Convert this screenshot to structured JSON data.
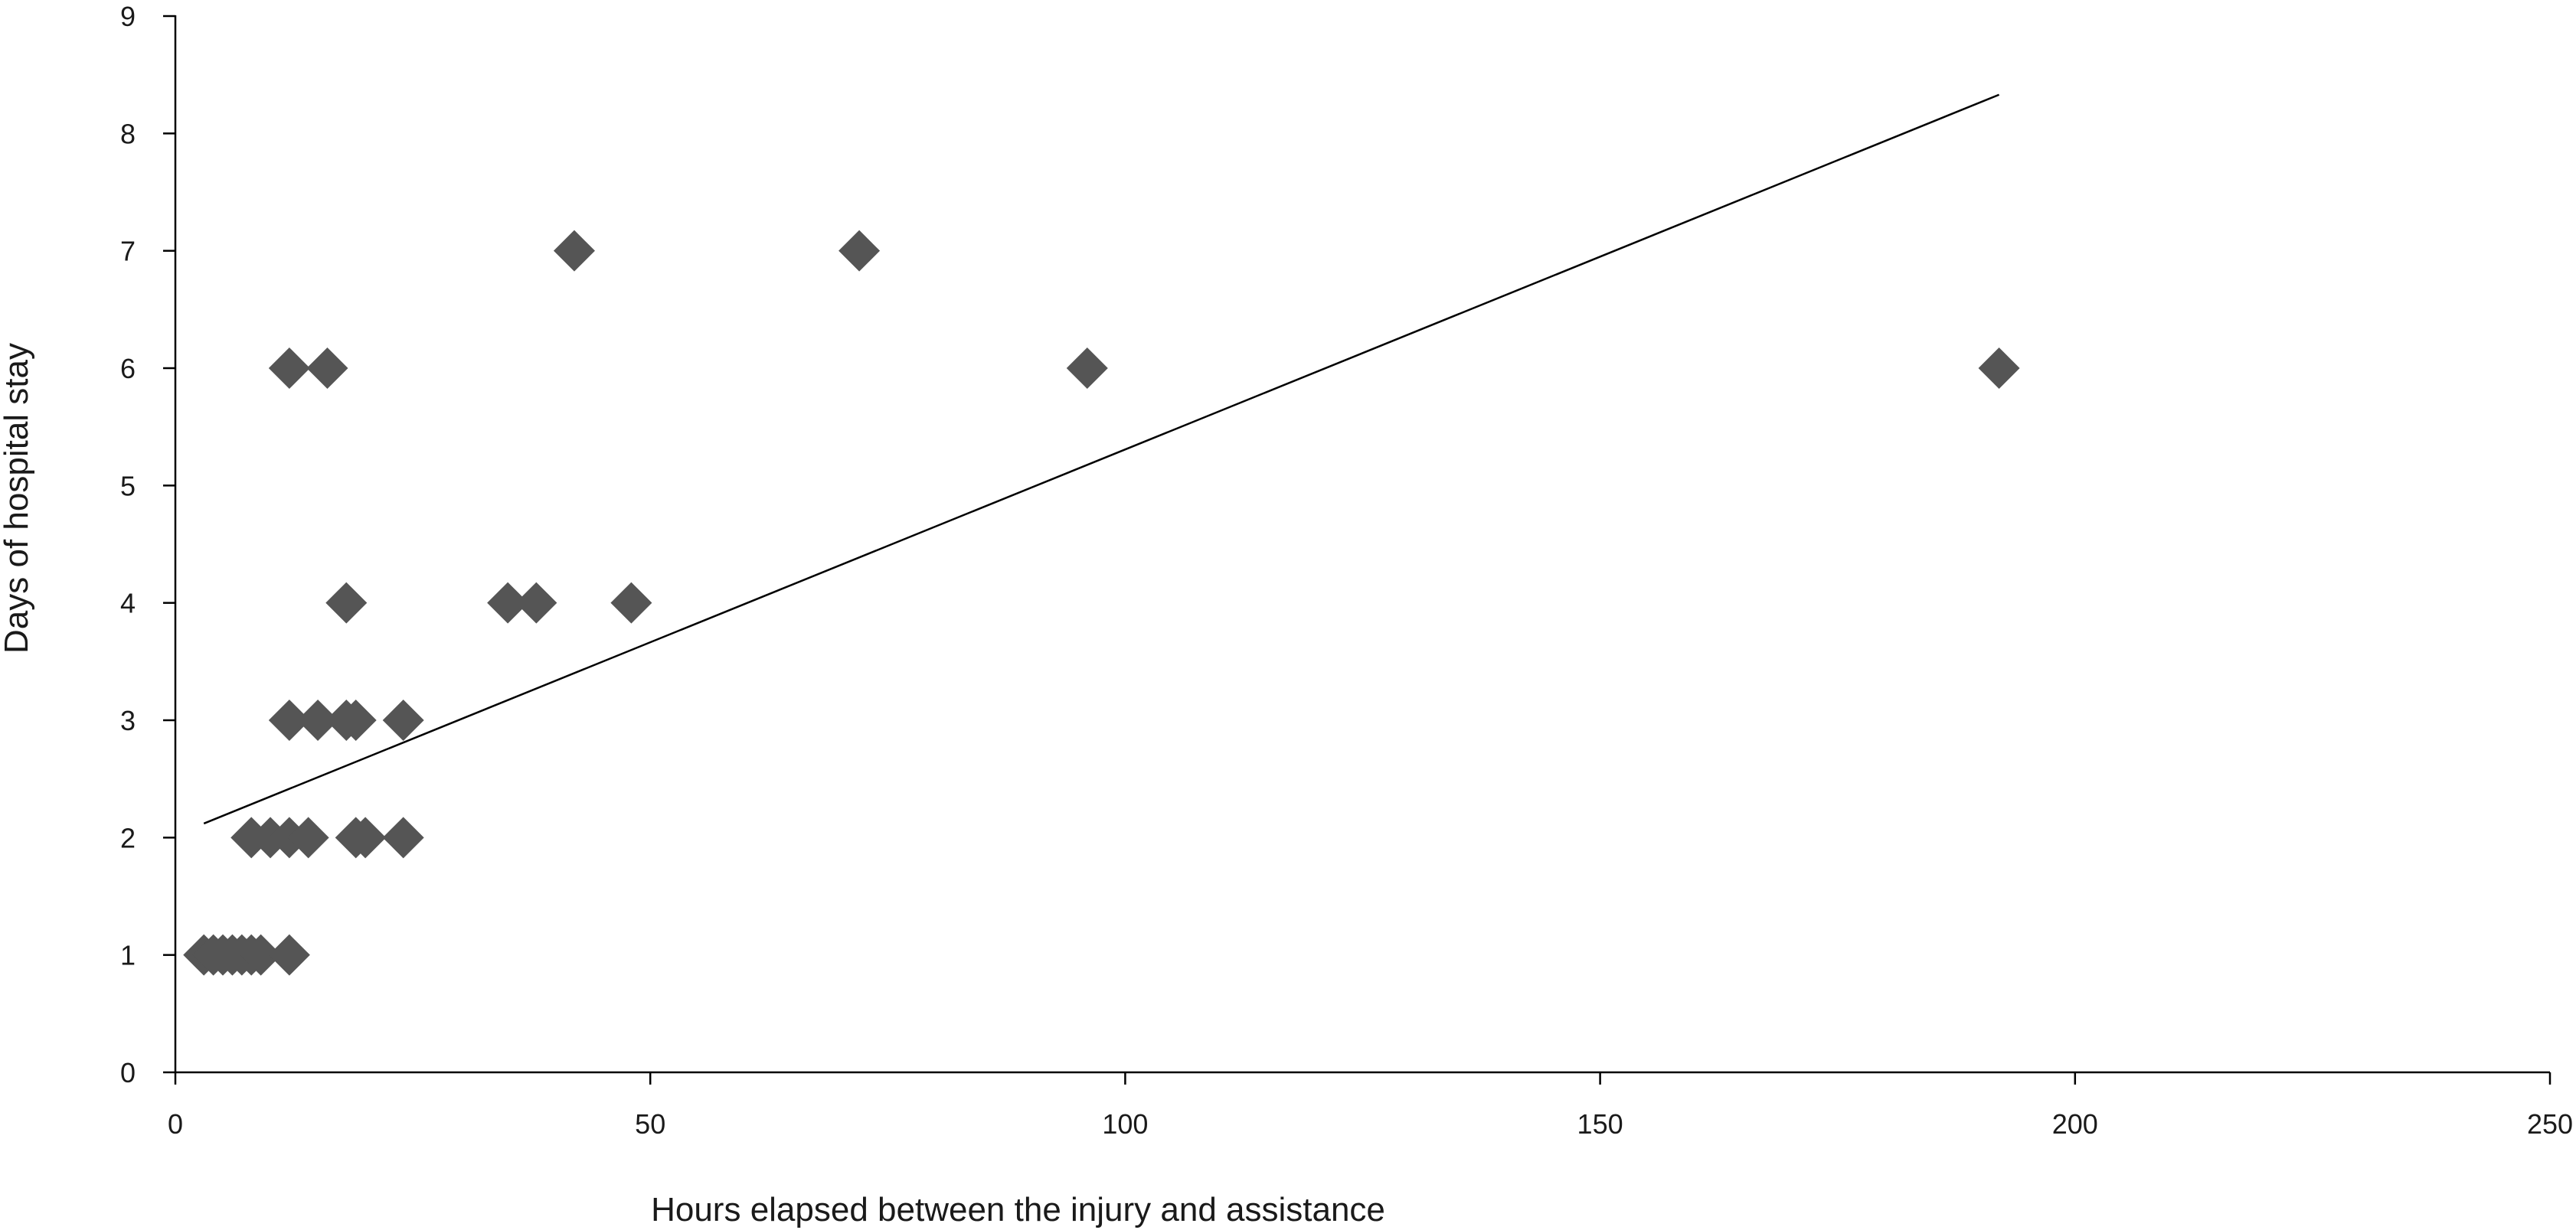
{
  "chart_data": {
    "type": "scatter",
    "title": "",
    "xlabel": "Hours elapsed between the injury and assistance",
    "ylabel": "Days of hospital stay",
    "xlim": [
      0,
      250
    ],
    "ylim": [
      0,
      9
    ],
    "x_ticks": [
      "0",
      "50",
      "100",
      "150",
      "200",
      "250"
    ],
    "y_ticks": [
      "0",
      "1",
      "2",
      "3",
      "4",
      "5",
      "6",
      "7",
      "8",
      "9"
    ],
    "grid": false,
    "legend": "none",
    "marker": "diamond",
    "marker_color": "#555555",
    "points": [
      {
        "x": 3,
        "y": 1
      },
      {
        "x": 4,
        "y": 1
      },
      {
        "x": 5,
        "y": 1
      },
      {
        "x": 6,
        "y": 1
      },
      {
        "x": 7,
        "y": 1
      },
      {
        "x": 8,
        "y": 1
      },
      {
        "x": 9,
        "y": 1
      },
      {
        "x": 12,
        "y": 1
      },
      {
        "x": 8,
        "y": 2
      },
      {
        "x": 10,
        "y": 2
      },
      {
        "x": 12,
        "y": 2
      },
      {
        "x": 14,
        "y": 2
      },
      {
        "x": 19,
        "y": 2
      },
      {
        "x": 20,
        "y": 2
      },
      {
        "x": 24,
        "y": 2
      },
      {
        "x": 12,
        "y": 3
      },
      {
        "x": 15,
        "y": 3
      },
      {
        "x": 18,
        "y": 3
      },
      {
        "x": 19,
        "y": 3
      },
      {
        "x": 24,
        "y": 3
      },
      {
        "x": 18,
        "y": 4
      },
      {
        "x": 35,
        "y": 4
      },
      {
        "x": 38,
        "y": 4
      },
      {
        "x": 48,
        "y": 4
      },
      {
        "x": 12,
        "y": 6
      },
      {
        "x": 16,
        "y": 6
      },
      {
        "x": 96,
        "y": 6
      },
      {
        "x": 192,
        "y": 6
      },
      {
        "x": 42,
        "y": 7
      },
      {
        "x": 72,
        "y": 7
      }
    ],
    "trend_line": {
      "x": [
        3,
        192
      ],
      "y": [
        2.12,
        8.33
      ]
    }
  }
}
